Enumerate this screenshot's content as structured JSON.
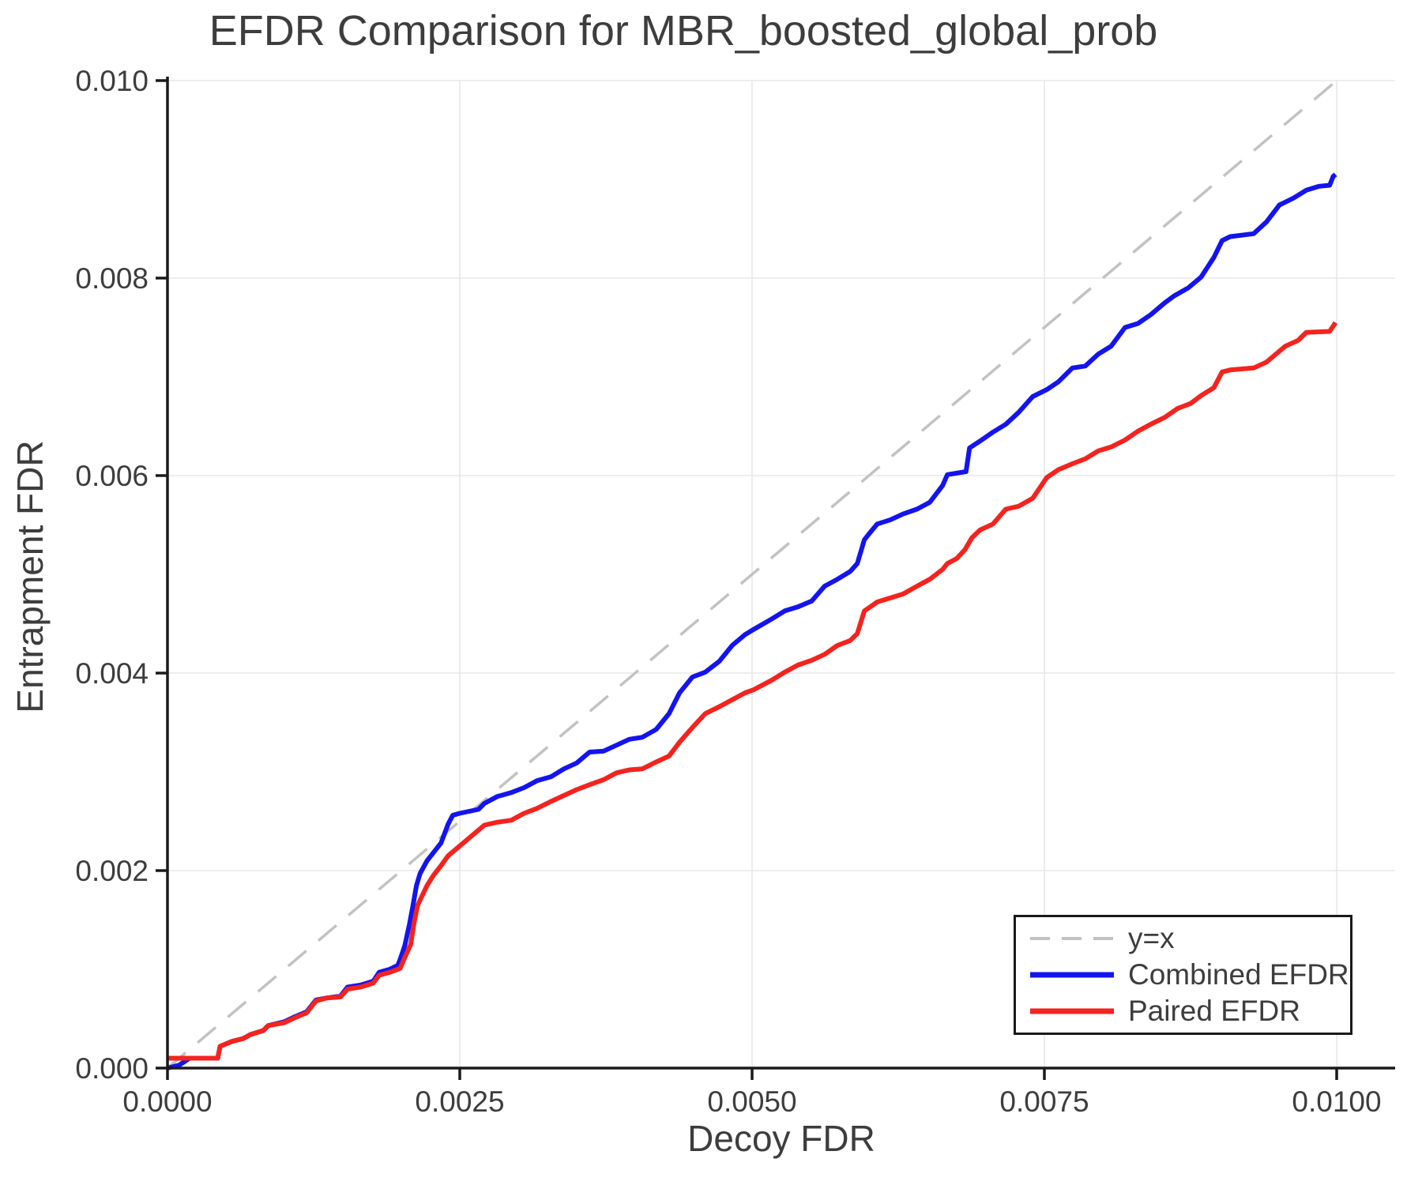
{
  "chart_data": {
    "type": "line",
    "title": "EFDR Comparison for MBR_boosted_global_prob",
    "xlabel": "Decoy FDR",
    "ylabel": "Entrapment FDR",
    "xlim": [
      0,
      0.0105
    ],
    "ylim": [
      0,
      0.01
    ],
    "grid": true,
    "legend_position": "lower right",
    "xticks": [
      {
        "v": 0.0,
        "label": "0.0000"
      },
      {
        "v": 0.0025,
        "label": "0.0025"
      },
      {
        "v": 0.005,
        "label": "0.0050"
      },
      {
        "v": 0.0075,
        "label": "0.0075"
      },
      {
        "v": 0.01,
        "label": "0.0100"
      }
    ],
    "yticks": [
      {
        "v": 0.0,
        "label": "0.000"
      },
      {
        "v": 0.002,
        "label": "0.002"
      },
      {
        "v": 0.004,
        "label": "0.004"
      },
      {
        "v": 0.006,
        "label": "0.006"
      },
      {
        "v": 0.008,
        "label": "0.008"
      },
      {
        "v": 0.01,
        "label": "0.010"
      }
    ],
    "series": [
      {
        "name": "y=x",
        "color": "#c2c2c2",
        "style": "dashed",
        "width": 3.5,
        "points": [
          [
            0,
            0
          ],
          [
            0.01,
            0.01
          ]
        ]
      },
      {
        "name": "Combined EFDR",
        "color": "#1414f0",
        "style": "solid",
        "width": 6,
        "points": [
          [
            0,
            0
          ],
          [
            0.0001,
            3e-05
          ],
          [
            0.00019,
            0.0001
          ],
          [
            0.00043,
            0.0001
          ],
          [
            0.00045,
            0.00022
          ],
          [
            0.00055,
            0.00027
          ],
          [
            0.00065,
            0.0003
          ],
          [
            0.00071,
            0.00034
          ],
          [
            0.00082,
            0.00038
          ],
          [
            0.00086,
            0.00043
          ],
          [
            0.001,
            0.00047
          ],
          [
            0.00109,
            0.00052
          ],
          [
            0.00119,
            0.00057
          ],
          [
            0.00127,
            0.00069
          ],
          [
            0.00136,
            0.00071
          ],
          [
            0.00148,
            0.00073
          ],
          [
            0.00154,
            0.00082
          ],
          [
            0.00165,
            0.00084
          ],
          [
            0.00176,
            0.00088
          ],
          [
            0.00181,
            0.00097
          ],
          [
            0.0019,
            0.001
          ],
          [
            0.00197,
            0.00104
          ],
          [
            0.00199,
            0.0011
          ],
          [
            0.00203,
            0.00124
          ],
          [
            0.00207,
            0.00146
          ],
          [
            0.0021,
            0.00165
          ],
          [
            0.00213,
            0.00185
          ],
          [
            0.00216,
            0.00197
          ],
          [
            0.00222,
            0.0021
          ],
          [
            0.00228,
            0.00219
          ],
          [
            0.00234,
            0.00228
          ],
          [
            0.0024,
            0.00247
          ],
          [
            0.00244,
            0.00256
          ],
          [
            0.0025,
            0.00258
          ],
          [
            0.00258,
            0.0026
          ],
          [
            0.00266,
            0.00262
          ],
          [
            0.00271,
            0.00268
          ],
          [
            0.00282,
            0.00275
          ],
          [
            0.00294,
            0.00279
          ],
          [
            0.00305,
            0.00284
          ],
          [
            0.00316,
            0.00291
          ],
          [
            0.00328,
            0.00295
          ],
          [
            0.00339,
            0.00303
          ],
          [
            0.0035,
            0.00309
          ],
          [
            0.00361,
            0.0032
          ],
          [
            0.00373,
            0.00321
          ],
          [
            0.00384,
            0.00327
          ],
          [
            0.00395,
            0.00333
          ],
          [
            0.00406,
            0.00335
          ],
          [
            0.00418,
            0.00343
          ],
          [
            0.00429,
            0.00359
          ],
          [
            0.00438,
            0.0038
          ],
          [
            0.00449,
            0.00396
          ],
          [
            0.0046,
            0.00401
          ],
          [
            0.00472,
            0.00412
          ],
          [
            0.00483,
            0.00428
          ],
          [
            0.00494,
            0.00439
          ],
          [
            0.00501,
            0.00444
          ],
          [
            0.00517,
            0.00455
          ],
          [
            0.00528,
            0.00463
          ],
          [
            0.00539,
            0.00467
          ],
          [
            0.00551,
            0.00473
          ],
          [
            0.00562,
            0.00488
          ],
          [
            0.00573,
            0.00495
          ],
          [
            0.00584,
            0.00503
          ],
          [
            0.0059,
            0.00511
          ],
          [
            0.00596,
            0.00535
          ],
          [
            0.006,
            0.00541
          ],
          [
            0.00607,
            0.00551
          ],
          [
            0.00618,
            0.00555
          ],
          [
            0.00629,
            0.00561
          ],
          [
            0.00641,
            0.00566
          ],
          [
            0.00652,
            0.00573
          ],
          [
            0.00663,
            0.0059
          ],
          [
            0.00667,
            0.00601
          ],
          [
            0.00683,
            0.00604
          ],
          [
            0.00686,
            0.00628
          ],
          [
            0.00695,
            0.00635
          ],
          [
            0.00706,
            0.00644
          ],
          [
            0.00717,
            0.00652
          ],
          [
            0.00728,
            0.00664
          ],
          [
            0.0074,
            0.0068
          ],
          [
            0.00752,
            0.00687
          ],
          [
            0.00762,
            0.00695
          ],
          [
            0.00774,
            0.00709
          ],
          [
            0.00785,
            0.00711
          ],
          [
            0.00796,
            0.00723
          ],
          [
            0.00807,
            0.00731
          ],
          [
            0.00819,
            0.0075
          ],
          [
            0.0083,
            0.00754
          ],
          [
            0.00841,
            0.00763
          ],
          [
            0.00853,
            0.00775
          ],
          [
            0.00861,
            0.00782
          ],
          [
            0.00873,
            0.0079
          ],
          [
            0.00884,
            0.00801
          ],
          [
            0.00895,
            0.00821
          ],
          [
            0.00902,
            0.00838
          ],
          [
            0.00909,
            0.00842
          ],
          [
            0.00929,
            0.00845
          ],
          [
            0.0094,
            0.00857
          ],
          [
            0.00951,
            0.00874
          ],
          [
            0.00963,
            0.00881
          ],
          [
            0.00974,
            0.00889
          ],
          [
            0.00985,
            0.00893
          ],
          [
            0.00994,
            0.00894
          ],
          [
            0.00997,
            0.00903
          ],
          [
            0.00999,
            0.00905
          ]
        ]
      },
      {
        "name": "Paired EFDR",
        "color": "#f5231e",
        "style": "solid",
        "width": 6,
        "points": [
          [
            0,
            0.0001
          ],
          [
            0.00043,
            0.0001
          ],
          [
            0.00045,
            0.00022
          ],
          [
            0.00055,
            0.00027
          ],
          [
            0.00065,
            0.0003
          ],
          [
            0.00071,
            0.00034
          ],
          [
            0.00082,
            0.00038
          ],
          [
            0.00086,
            0.00043
          ],
          [
            0.001,
            0.00046
          ],
          [
            0.00109,
            0.00051
          ],
          [
            0.00119,
            0.00056
          ],
          [
            0.00127,
            0.00068
          ],
          [
            0.00136,
            0.00071
          ],
          [
            0.00148,
            0.00072
          ],
          [
            0.00154,
            0.0008
          ],
          [
            0.00165,
            0.00082
          ],
          [
            0.00176,
            0.00086
          ],
          [
            0.00181,
            0.00094
          ],
          [
            0.0019,
            0.00097
          ],
          [
            0.00199,
            0.00101
          ],
          [
            0.00203,
            0.00112
          ],
          [
            0.00208,
            0.00125
          ],
          [
            0.00211,
            0.00148
          ],
          [
            0.00214,
            0.00165
          ],
          [
            0.00218,
            0.00175
          ],
          [
            0.00222,
            0.00185
          ],
          [
            0.00228,
            0.00196
          ],
          [
            0.00234,
            0.00205
          ],
          [
            0.0024,
            0.00215
          ],
          [
            0.0025,
            0.00225
          ],
          [
            0.0026,
            0.00235
          ],
          [
            0.00271,
            0.00246
          ],
          [
            0.00282,
            0.00249
          ],
          [
            0.00294,
            0.00251
          ],
          [
            0.00305,
            0.00258
          ],
          [
            0.00316,
            0.00263
          ],
          [
            0.00328,
            0.0027
          ],
          [
            0.00339,
            0.00276
          ],
          [
            0.0035,
            0.00282
          ],
          [
            0.00361,
            0.00287
          ],
          [
            0.00373,
            0.00292
          ],
          [
            0.00384,
            0.00299
          ],
          [
            0.00395,
            0.00302
          ],
          [
            0.00406,
            0.00303
          ],
          [
            0.00418,
            0.0031
          ],
          [
            0.00429,
            0.00316
          ],
          [
            0.00438,
            0.0033
          ],
          [
            0.00449,
            0.00345
          ],
          [
            0.0046,
            0.00359
          ],
          [
            0.00472,
            0.00366
          ],
          [
            0.00483,
            0.00373
          ],
          [
            0.00494,
            0.0038
          ],
          [
            0.00501,
            0.00383
          ],
          [
            0.00517,
            0.00393
          ],
          [
            0.00528,
            0.00401
          ],
          [
            0.00539,
            0.00408
          ],
          [
            0.00551,
            0.00413
          ],
          [
            0.00562,
            0.00419
          ],
          [
            0.00573,
            0.00428
          ],
          [
            0.00584,
            0.00433
          ],
          [
            0.0059,
            0.0044
          ],
          [
            0.00596,
            0.00463
          ],
          [
            0.00607,
            0.00472
          ],
          [
            0.00618,
            0.00476
          ],
          [
            0.00629,
            0.0048
          ],
          [
            0.00641,
            0.00488
          ],
          [
            0.00652,
            0.00495
          ],
          [
            0.00663,
            0.00505
          ],
          [
            0.00667,
            0.00511
          ],
          [
            0.00675,
            0.00516
          ],
          [
            0.00682,
            0.00525
          ],
          [
            0.00688,
            0.00537
          ],
          [
            0.00695,
            0.00545
          ],
          [
            0.00706,
            0.00551
          ],
          [
            0.00717,
            0.00566
          ],
          [
            0.00728,
            0.00569
          ],
          [
            0.0074,
            0.00577
          ],
          [
            0.00752,
            0.00598
          ],
          [
            0.00762,
            0.00606
          ],
          [
            0.00774,
            0.00612
          ],
          [
            0.00785,
            0.00617
          ],
          [
            0.00796,
            0.00625
          ],
          [
            0.00807,
            0.00629
          ],
          [
            0.00819,
            0.00636
          ],
          [
            0.0083,
            0.00645
          ],
          [
            0.00841,
            0.00652
          ],
          [
            0.00853,
            0.00659
          ],
          [
            0.00864,
            0.00668
          ],
          [
            0.00875,
            0.00673
          ],
          [
            0.00884,
            0.00681
          ],
          [
            0.00895,
            0.00689
          ],
          [
            0.00902,
            0.00705
          ],
          [
            0.00909,
            0.00707
          ],
          [
            0.00929,
            0.00709
          ],
          [
            0.0094,
            0.00715
          ],
          [
            0.00947,
            0.00722
          ],
          [
            0.00956,
            0.00731
          ],
          [
            0.00967,
            0.00737
          ],
          [
            0.00974,
            0.00745
          ],
          [
            0.00994,
            0.00746
          ],
          [
            0.00999,
            0.00755
          ]
        ]
      }
    ],
    "style": {
      "grid_color": "#e8e8e8",
      "spine_color": "#1a1a1a",
      "tick_color": "#1a1a1a",
      "text_color": "#3d3d3d",
      "background": "#ffffff"
    }
  }
}
